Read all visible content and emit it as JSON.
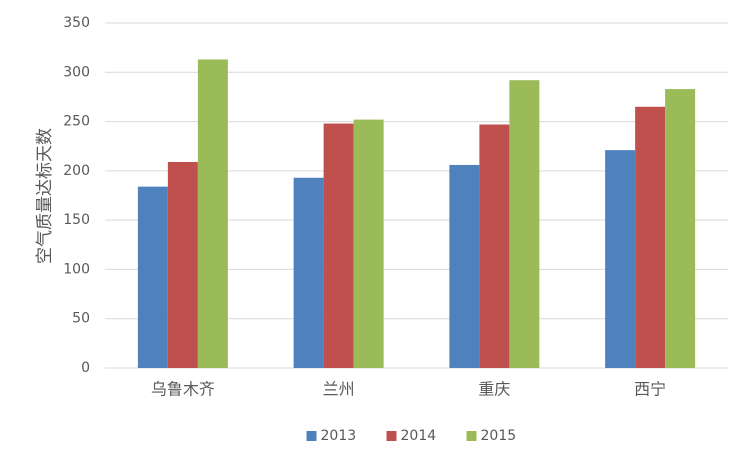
{
  "chart_data": {
    "type": "bar",
    "y_label": "空气质量达标天数",
    "categories": [
      "乌鲁木齐",
      "兰州",
      "重庆",
      "西宁"
    ],
    "series": [
      {
        "name": "2013",
        "color": "#4f81bd",
        "values": [
          184,
          193,
          206,
          221
        ]
      },
      {
        "name": "2014",
        "color": "#c0504d",
        "values": [
          209,
          248,
          247,
          265
        ]
      },
      {
        "name": "2015",
        "color": "#9bbb59",
        "values": [
          313,
          252,
          292,
          283
        ]
      }
    ],
    "ylim": [
      0,
      350
    ],
    "yticks": [
      0,
      50,
      100,
      150,
      200,
      250,
      300,
      350
    ],
    "grid": true,
    "legend": "bottom"
  }
}
